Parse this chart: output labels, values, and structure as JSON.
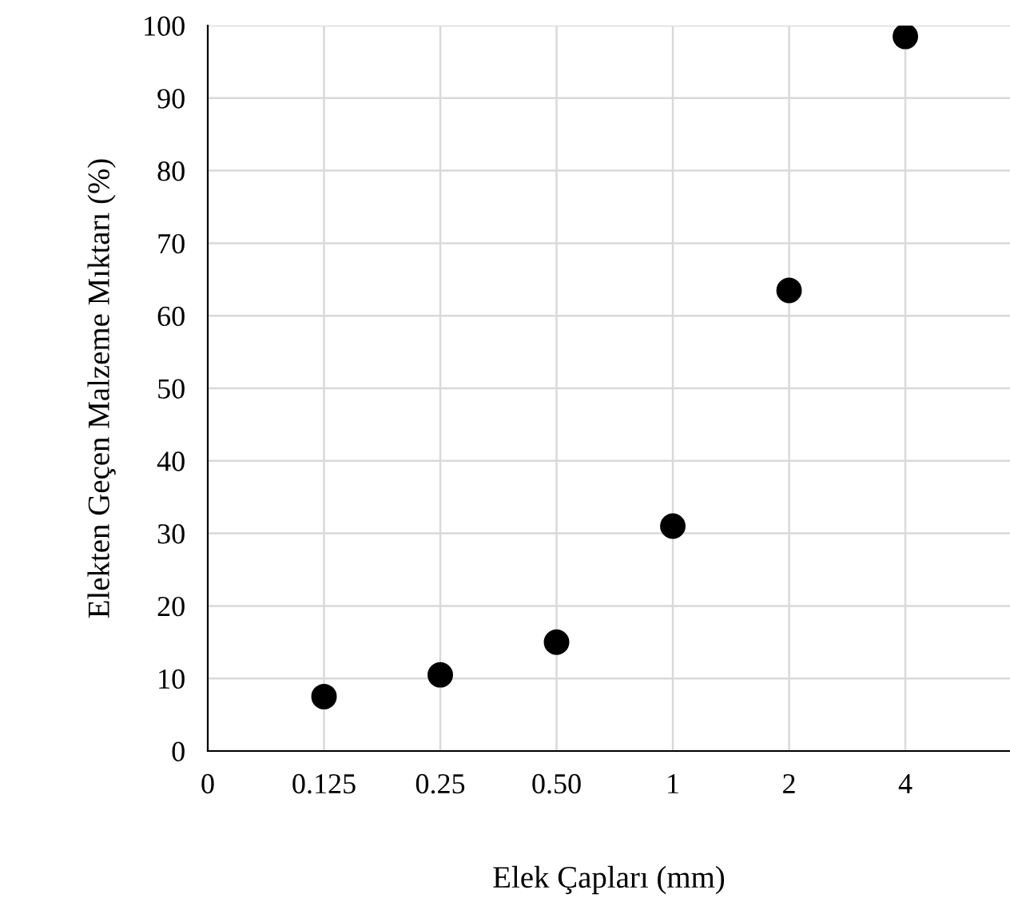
{
  "chart_data": {
    "type": "scatter",
    "xlabel": "Elek Çapları (mm)",
    "ylabel": "Elekten Geçen Malzeme Mıktarı (%)",
    "categories": [
      "0",
      "0.125",
      "0.25",
      "0.50",
      "1",
      "2",
      "4"
    ],
    "series": [
      {
        "color": "#000000",
        "values": [
          null,
          7.5,
          10.5,
          15,
          31,
          63.5,
          98.5
        ]
      }
    ],
    "ylim": [
      0,
      100
    ],
    "yticks": [
      0,
      10,
      20,
      30,
      40,
      50,
      60,
      70,
      80,
      90,
      100
    ],
    "grid": true,
    "marker": "circle"
  }
}
